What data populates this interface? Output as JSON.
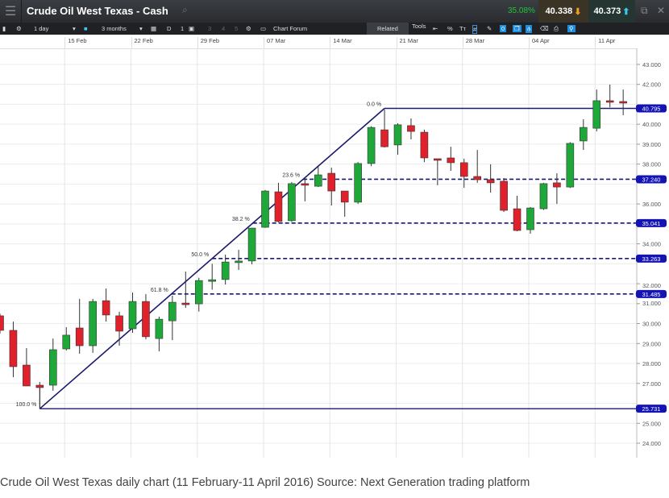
{
  "header": {
    "menu_icon": "hamburger-icon",
    "title": "Crude Oil West Texas - Cash",
    "change": "35.08%",
    "bid": "40.338",
    "ask": "40.373",
    "bid_arrow": "arrow-down-icon",
    "ask_arrow": "arrow-up-icon"
  },
  "toolbar": {
    "interval": "1 day",
    "range": "3 months",
    "d_label": "D",
    "count": "1",
    "slots": [
      "3",
      "4",
      "5"
    ],
    "chart_forum": "Chart Forum",
    "related": "Related",
    "tools": "Tools",
    "zero": "0"
  },
  "colors": {
    "up": "#1fa83a",
    "down": "#e0202a",
    "fib": "#1a1a6e",
    "label_bg": "#1414b4"
  },
  "chart_data": {
    "type": "candlestick",
    "x_ticks": [
      "15 Feb",
      "22 Feb",
      "29 Feb",
      "07 Mar",
      "14 Mar",
      "21 Mar",
      "28 Mar",
      "04 Apr",
      "11 Apr"
    ],
    "y_ticks": [
      "43.000",
      "42.000",
      "40.000",
      "39.000",
      "38.000",
      "36.000",
      "34.000",
      "32.000",
      "31.000",
      "30.000",
      "29.000",
      "28.000",
      "27.000",
      "25.000",
      "24.000"
    ],
    "ylim": [
      24,
      43
    ],
    "grid": true,
    "ohlc": [
      [
        30.39,
        30.5,
        29.5,
        29.66
      ],
      [
        29.66,
        30.1,
        27.31,
        27.84
      ],
      [
        27.92,
        28.77,
        26.87,
        26.87
      ],
      [
        26.91,
        27.07,
        25.73,
        26.79
      ],
      [
        26.91,
        29.25,
        26.63,
        28.69
      ],
      [
        28.73,
        29.82,
        28.65,
        29.42
      ],
      [
        29.78,
        31.24,
        28.49,
        28.89
      ],
      [
        28.89,
        31.24,
        28.53,
        31.11
      ],
      [
        31.15,
        31.76,
        30.1,
        30.43
      ],
      [
        30.39,
        30.59,
        28.89,
        29.62
      ],
      [
        29.74,
        31.56,
        29.54,
        31.11
      ],
      [
        31.11,
        31.48,
        29.21,
        29.34
      ],
      [
        29.25,
        30.35,
        28.61,
        30.22
      ],
      [
        30.14,
        31.4,
        29.17,
        31.07
      ],
      [
        31.03,
        32.61,
        30.79,
        30.95
      ],
      [
        30.99,
        32.3,
        30.6,
        32.16
      ],
      [
        32.2,
        33.0,
        31.7,
        32.2
      ],
      [
        32.21,
        33.46,
        31.96,
        33.09
      ],
      [
        33.1,
        33.7,
        32.69,
        33.14
      ],
      [
        33.14,
        34.8,
        32.97,
        34.79
      ],
      [
        34.83,
        36.7,
        34.8,
        36.65
      ],
      [
        36.61,
        37.06,
        35.08,
        35.12
      ],
      [
        35.16,
        37.1,
        35.1,
        37.02
      ],
      [
        37.02,
        37.26,
        36.13,
        36.94
      ],
      [
        36.89,
        37.86,
        36.85,
        37.46
      ],
      [
        37.54,
        37.82,
        35.92,
        36.65
      ],
      [
        36.65,
        36.65,
        35.36,
        36.09
      ],
      [
        36.09,
        38.1,
        36.0,
        38.03
      ],
      [
        38.03,
        39.9,
        37.9,
        39.84
      ],
      [
        39.72,
        40.73,
        38.83,
        38.87
      ],
      [
        38.96,
        40.05,
        38.47,
        39.97
      ],
      [
        39.93,
        40.29,
        39.24,
        39.64
      ],
      [
        39.6,
        39.73,
        38.1,
        38.31
      ],
      [
        38.27,
        38.27,
        36.94,
        38.19
      ],
      [
        38.31,
        38.87,
        37.66,
        38.07
      ],
      [
        38.07,
        38.27,
        36.81,
        37.38
      ],
      [
        37.38,
        38.71,
        37.06,
        37.22
      ],
      [
        37.22,
        37.99,
        36.57,
        37.06
      ],
      [
        37.14,
        37.3,
        35.6,
        35.68
      ],
      [
        35.76,
        36.41,
        34.63,
        34.67
      ],
      [
        34.71,
        35.85,
        34.51,
        35.8
      ],
      [
        35.76,
        37.06,
        35.7,
        37.02
      ],
      [
        37.06,
        37.54,
        36.0,
        36.85
      ],
      [
        36.85,
        39.1,
        36.8,
        39.04
      ],
      [
        39.16,
        40.25,
        38.71,
        39.84
      ],
      [
        39.8,
        41.74,
        39.64,
        41.18
      ],
      [
        41.18,
        41.99,
        40.85,
        41.1
      ],
      [
        41.14,
        41.74,
        40.45,
        41.1
      ]
    ],
    "fibonacci": {
      "low": 25.731,
      "high": 40.795,
      "levels": [
        {
          "pct": "0.0 %",
          "value": "40.795",
          "v": 40.795,
          "dashed": false
        },
        {
          "pct": "23.6 %",
          "value": "37.240",
          "v": 37.24,
          "dashed": true
        },
        {
          "pct": "38.2 %",
          "value": "35.041",
          "v": 35.041,
          "dashed": true
        },
        {
          "pct": "50.0 %",
          "value": "33.263",
          "v": 33.263,
          "dashed": true
        },
        {
          "pct": "61.8 %",
          "value": "31.485",
          "v": 31.485,
          "dashed": true
        },
        {
          "pct": "100.0 %",
          "value": "25.731",
          "v": 25.731,
          "dashed": false
        }
      ]
    }
  },
  "caption": "Crude Oil West Texas daily chart (11 February-11 April 2016) Source: Next Generation trading platform"
}
